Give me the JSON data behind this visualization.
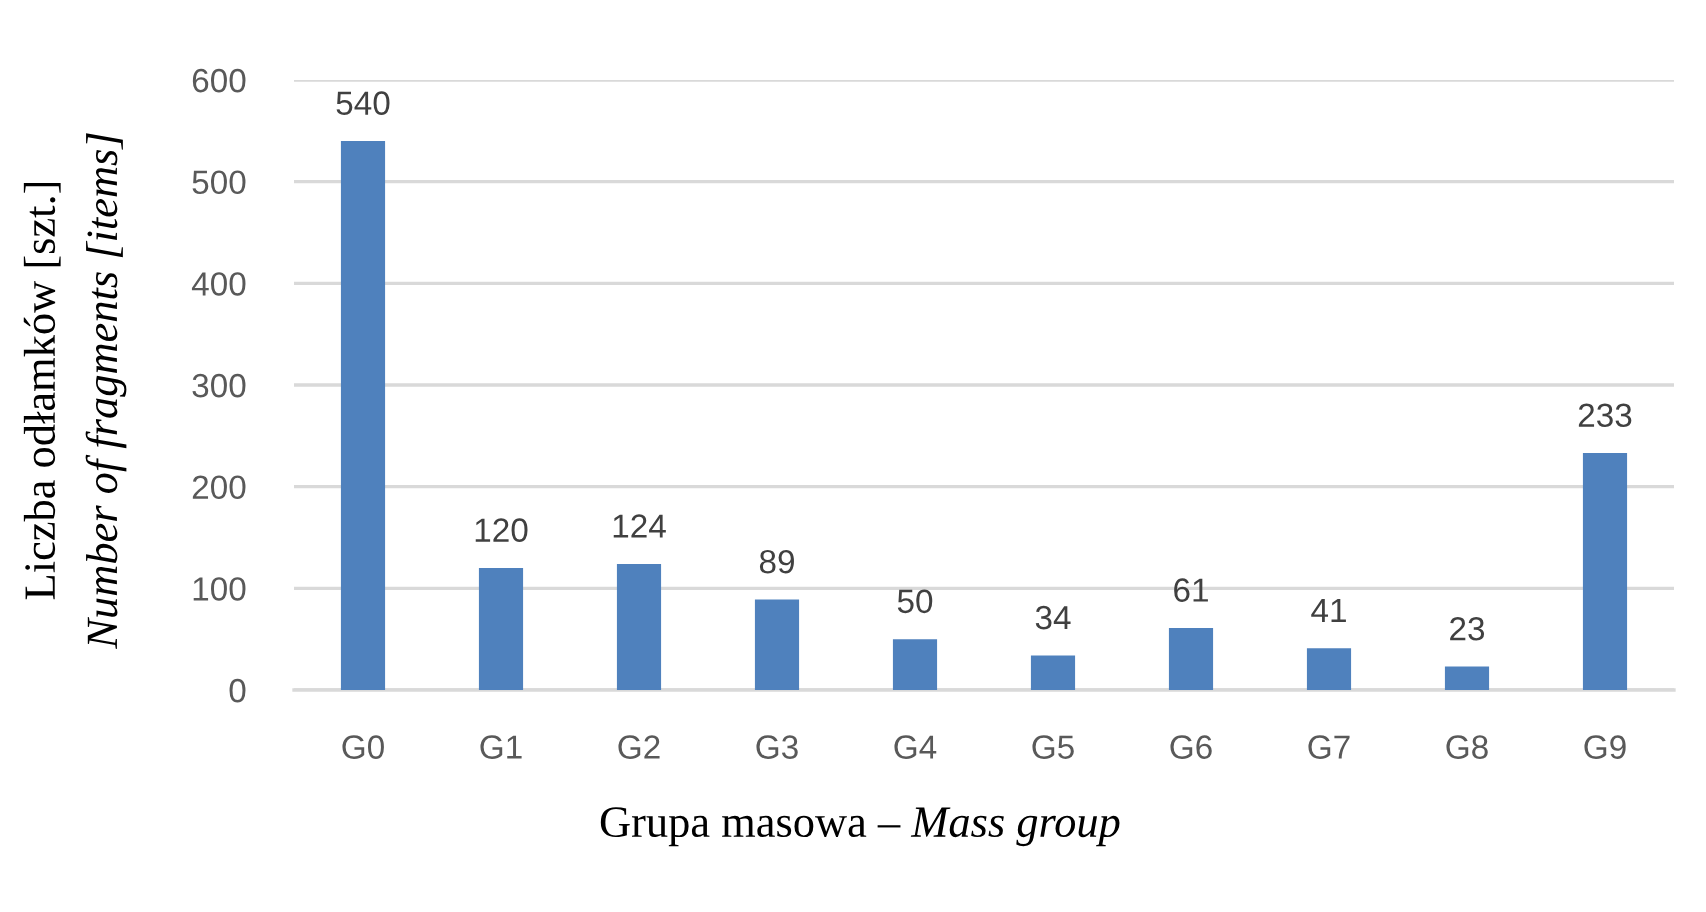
{
  "chart_data": {
    "type": "bar",
    "xlabel": "Grupa masowa – Mass group",
    "ylabel": "Liczba odłamków [szt.]\nNumber of fragments [items]",
    "categories": [
      "G0",
      "G1",
      "G2",
      "G3",
      "G4",
      "G5",
      "G6",
      "G7",
      "G8",
      "G9"
    ],
    "values": [
      540,
      120,
      124,
      89,
      50,
      34,
      61,
      41,
      23,
      233
    ],
    "color": "#4f81bd",
    "ylim": [
      0,
      600
    ],
    "yticks": [
      0,
      100,
      200,
      300,
      400,
      500,
      600
    ],
    "grid": "y",
    "data_labels": true
  }
}
